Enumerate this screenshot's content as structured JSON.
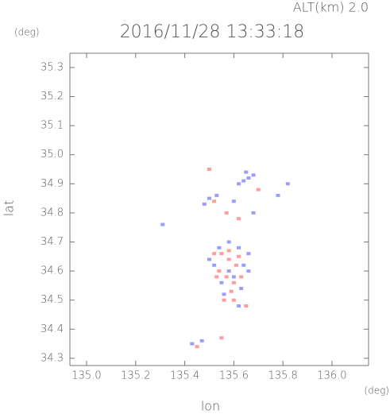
{
  "chart_data": {
    "type": "scatter",
    "title": "2016/11/28 13:33:18",
    "subtitle": "ALT(km) 2.0",
    "y_unit": "(deg)",
    "x_unit": "(deg)",
    "xlabel": "lon",
    "ylabel": "lat",
    "xlim": [
      134.932,
      136.149
    ],
    "ylim": [
      34.275,
      35.349
    ],
    "xticks": [
      {
        "value": 135.0,
        "label": "135.0"
      },
      135.2,
      135.4,
      135.6,
      135.8,
      {
        "value": 136.0,
        "label": "136.0"
      }
    ],
    "yticks": [
      35.3,
      35.2,
      35.1,
      {
        "value": 35.0,
        "label": "35.0"
      },
      34.9,
      34.8,
      34.7,
      34.6,
      34.5,
      34.4,
      34.3
    ],
    "series": [
      {
        "color": "#7b7bff",
        "x": [
          135.65,
          135.66,
          135.64,
          135.62,
          135.68,
          135.53,
          135.5,
          135.82,
          135.78,
          135.58,
          135.62,
          135.66,
          135.5,
          135.52,
          135.64,
          135.6,
          135.55,
          135.63,
          135.62,
          135.58,
          135.66,
          135.54,
          135.56,
          135.43,
          135.47,
          135.31,
          135.68,
          135.6,
          135.48
        ],
        "y": [
          34.94,
          34.92,
          34.91,
          34.9,
          34.93,
          34.86,
          34.85,
          34.9,
          34.86,
          34.7,
          34.68,
          34.66,
          34.64,
          34.62,
          34.62,
          34.58,
          34.56,
          34.54,
          34.48,
          34.6,
          34.6,
          34.68,
          34.52,
          34.35,
          34.36,
          34.76,
          34.8,
          34.84,
          34.83
        ]
      },
      {
        "color": "#ff7b7b",
        "x": [
          135.55,
          135.58,
          135.61,
          135.54,
          135.57,
          135.6,
          135.59,
          135.56,
          135.6,
          135.52,
          135.62,
          135.58,
          135.62,
          135.7,
          135.57,
          135.52,
          135.5,
          135.45,
          135.55,
          135.65,
          135.53,
          135.63
        ],
        "y": [
          34.66,
          34.64,
          34.62,
          34.6,
          34.58,
          34.56,
          34.53,
          34.5,
          34.5,
          34.66,
          34.65,
          34.67,
          34.78,
          34.88,
          34.8,
          34.84,
          34.95,
          34.34,
          34.37,
          34.48,
          34.58,
          34.58
        ]
      }
    ]
  }
}
